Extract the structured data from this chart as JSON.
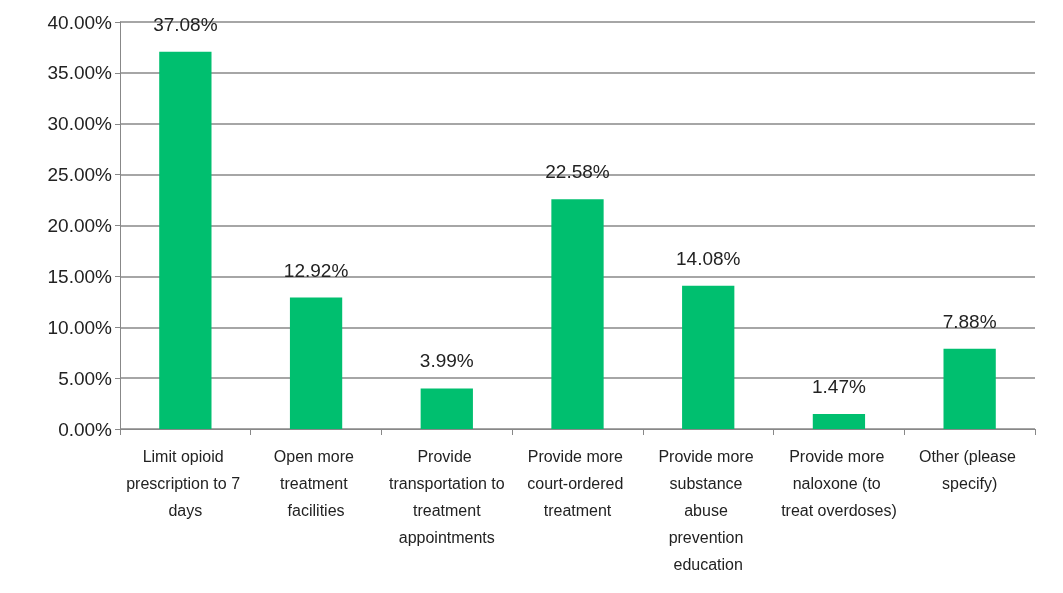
{
  "chart_data": {
    "type": "bar",
    "categories": [
      "Limit opioid prescription to 7 days",
      "Open more treatment facilities",
      "Provide transportation to treatment appointments",
      "Provide more court-ordered treatment",
      "Provide more substance abuse prevention education",
      "Provide more naloxone (to treat overdoses)",
      "Other (please specify)"
    ],
    "values": [
      37.08,
      12.92,
      3.99,
      22.58,
      14.08,
      1.47,
      7.88
    ],
    "value_labels": [
      "37.08%",
      "12.92%",
      "3.99%",
      "22.58%",
      "14.08%",
      "1.47%",
      "7.88%"
    ],
    "color": "#00bf6f",
    "ylim": [
      0,
      40
    ],
    "yticks": [
      {
        "value": 0,
        "label": "0.00%"
      },
      {
        "value": 5,
        "label": "5.00%"
      },
      {
        "value": 10,
        "label": "10.00%"
      },
      {
        "value": 15,
        "label": "15.00%"
      },
      {
        "value": 20,
        "label": "20.00%"
      },
      {
        "value": 25,
        "label": "25.00%"
      },
      {
        "value": 30,
        "label": "30.00%"
      },
      {
        "value": 35,
        "label": "35.00%"
      },
      {
        "value": 40,
        "label": "40.00%"
      }
    ],
    "grid": true
  }
}
